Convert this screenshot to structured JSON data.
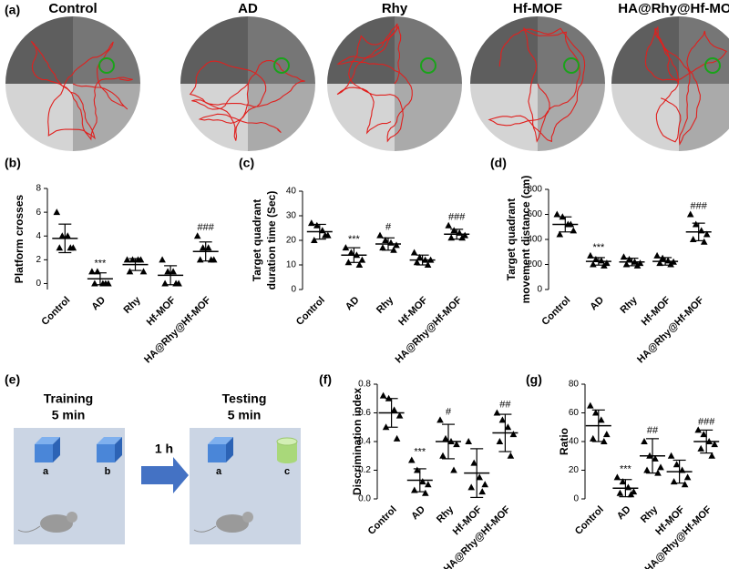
{
  "panel_labels": [
    "(a)",
    "(b)",
    "(c)",
    "(d)",
    "(e)",
    "(f)",
    "(g)"
  ],
  "maze": {
    "titles": [
      "Control",
      "AD",
      "Rhy",
      "Hf-MOF",
      "HA@Rhy@Hf-MOF"
    ]
  },
  "diagram": {
    "left_title": "Training",
    "left_time": "5 min",
    "arrow_label": "1 h",
    "right_title": "Testing",
    "right_time": "5 min",
    "objects": [
      "a",
      "b",
      "a",
      "c"
    ]
  },
  "chart_data": [
    {
      "type": "dot",
      "ylabel": [
        "Platform crosses"
      ],
      "categories": [
        "Control",
        "AD",
        "Rhy",
        "Hf-MOF",
        "HA@Rhy@Hf-MOF"
      ],
      "values": [
        [
          6,
          4,
          4,
          3,
          3,
          3
        ],
        [
          1,
          1,
          0,
          0,
          0,
          0
        ],
        [
          2,
          2,
          2,
          1,
          1,
          2
        ],
        [
          2,
          1,
          1,
          0,
          0,
          0
        ],
        [
          4,
          3,
          3,
          2,
          2,
          2
        ]
      ],
      "means": [
        3.8,
        0.4,
        1.6,
        0.7,
        2.7
      ],
      "sds": [
        1.2,
        0.5,
        0.5,
        0.8,
        0.8
      ],
      "annotations": [
        null,
        "***",
        null,
        null,
        "###"
      ],
      "ylim": [
        -0.5,
        8
      ],
      "yticks": [
        0,
        2,
        4,
        6,
        8
      ],
      "color": "#000000"
    },
    {
      "type": "dot",
      "ylabel": [
        "Target quadrant",
        "duration time (Sec)"
      ],
      "categories": [
        "Control",
        "AD",
        "Rhy",
        "Hf-MOF",
        "HA@Rhy@Hf-MOF"
      ],
      "values": [
        [
          27,
          26,
          24,
          22,
          20,
          22
        ],
        [
          17,
          15,
          14,
          12,
          11,
          10
        ],
        [
          22,
          20,
          19,
          18,
          17,
          16
        ],
        [
          15,
          13,
          12,
          12,
          11,
          10
        ],
        [
          26,
          24,
          23,
          22,
          21,
          21
        ]
      ],
      "means": [
        23.5,
        14,
        18.5,
        12,
        22.5
      ],
      "sds": [
        3,
        3,
        2.5,
        2,
        2
      ],
      "annotations": [
        null,
        "***",
        "#",
        null,
        "###"
      ],
      "ylim": [
        0,
        40
      ],
      "yticks": [
        0,
        10,
        20,
        30,
        40
      ],
      "color": "#000000"
    },
    {
      "type": "dot",
      "ylabel": [
        "Target quadrant",
        "movement distance (cm)"
      ],
      "categories": [
        "Control",
        "AD",
        "Rhy",
        "Hf-MOF",
        "HA@Rhy@Hf-MOF"
      ],
      "values": [
        [
          600,
          580,
          520,
          470,
          440,
          520
        ],
        [
          270,
          240,
          230,
          210,
          200,
          190
        ],
        [
          260,
          240,
          220,
          210,
          200,
          190
        ],
        [
          270,
          250,
          230,
          220,
          210,
          200
        ],
        [
          600,
          520,
          470,
          440,
          400,
          380
        ]
      ],
      "means": [
        520,
        225,
        220,
        225,
        460
      ],
      "sds": [
        60,
        30,
        30,
        30,
        70
      ],
      "annotations": [
        null,
        "***",
        null,
        null,
        "###"
      ],
      "ylim": [
        0,
        800
      ],
      "yticks": [
        0,
        200,
        400,
        600,
        800
      ],
      "color": "#000000"
    },
    {
      "type": "dot",
      "ylabel": [
        "Discrimination index"
      ],
      "categories": [
        "Control",
        "AD",
        "Rhy",
        "Hf-MOF",
        "HA@Rhy@Hf-MOF"
      ],
      "values": [
        [
          0.72,
          0.7,
          0.62,
          0.58,
          0.5,
          0.42
        ],
        [
          0.27,
          0.2,
          0.12,
          0.1,
          0.06,
          0.04
        ],
        [
          0.55,
          0.42,
          0.4,
          0.38,
          0.3,
          0.2
        ],
        [
          0.4,
          0.25,
          0.15,
          0.1,
          0.08,
          0.05
        ],
        [
          0.6,
          0.55,
          0.5,
          0.45,
          0.4,
          0.3
        ]
      ],
      "means": [
        0.6,
        0.13,
        0.4,
        0.18,
        0.46
      ],
      "sds": [
        0.1,
        0.08,
        0.12,
        0.17,
        0.13
      ],
      "annotations": [
        null,
        "***",
        "#",
        null,
        "##"
      ],
      "ylim": [
        0,
        0.8
      ],
      "yticks": [
        {
          "value": 0,
          "label": "0.0"
        },
        0.2,
        0.4,
        0.6,
        0.8
      ],
      "color": "#000000"
    },
    {
      "type": "dot",
      "ylabel": [
        "Ratio"
      ],
      "categories": [
        "Control",
        "AD",
        "Rhy",
        "Hf-MOF",
        "HA@Rhy@Hf-MOF"
      ],
      "values": [
        [
          65,
          60,
          55,
          45,
          42,
          40
        ],
        [
          15,
          12,
          8,
          5,
          4,
          3
        ],
        [
          40,
          30,
          28,
          22,
          20,
          18
        ],
        [
          30,
          24,
          20,
          15,
          12,
          10
        ],
        [
          48,
          45,
          40,
          38,
          35,
          30
        ]
      ],
      "means": [
        51,
        7.5,
        30,
        19,
        40
      ],
      "sds": [
        11,
        6,
        12,
        8,
        8
      ],
      "annotations": [
        null,
        "***",
        "##",
        null,
        "###"
      ],
      "ylim": [
        0,
        80
      ],
      "yticks": [
        0,
        20,
        40,
        60,
        80
      ],
      "color": "#000000"
    }
  ]
}
